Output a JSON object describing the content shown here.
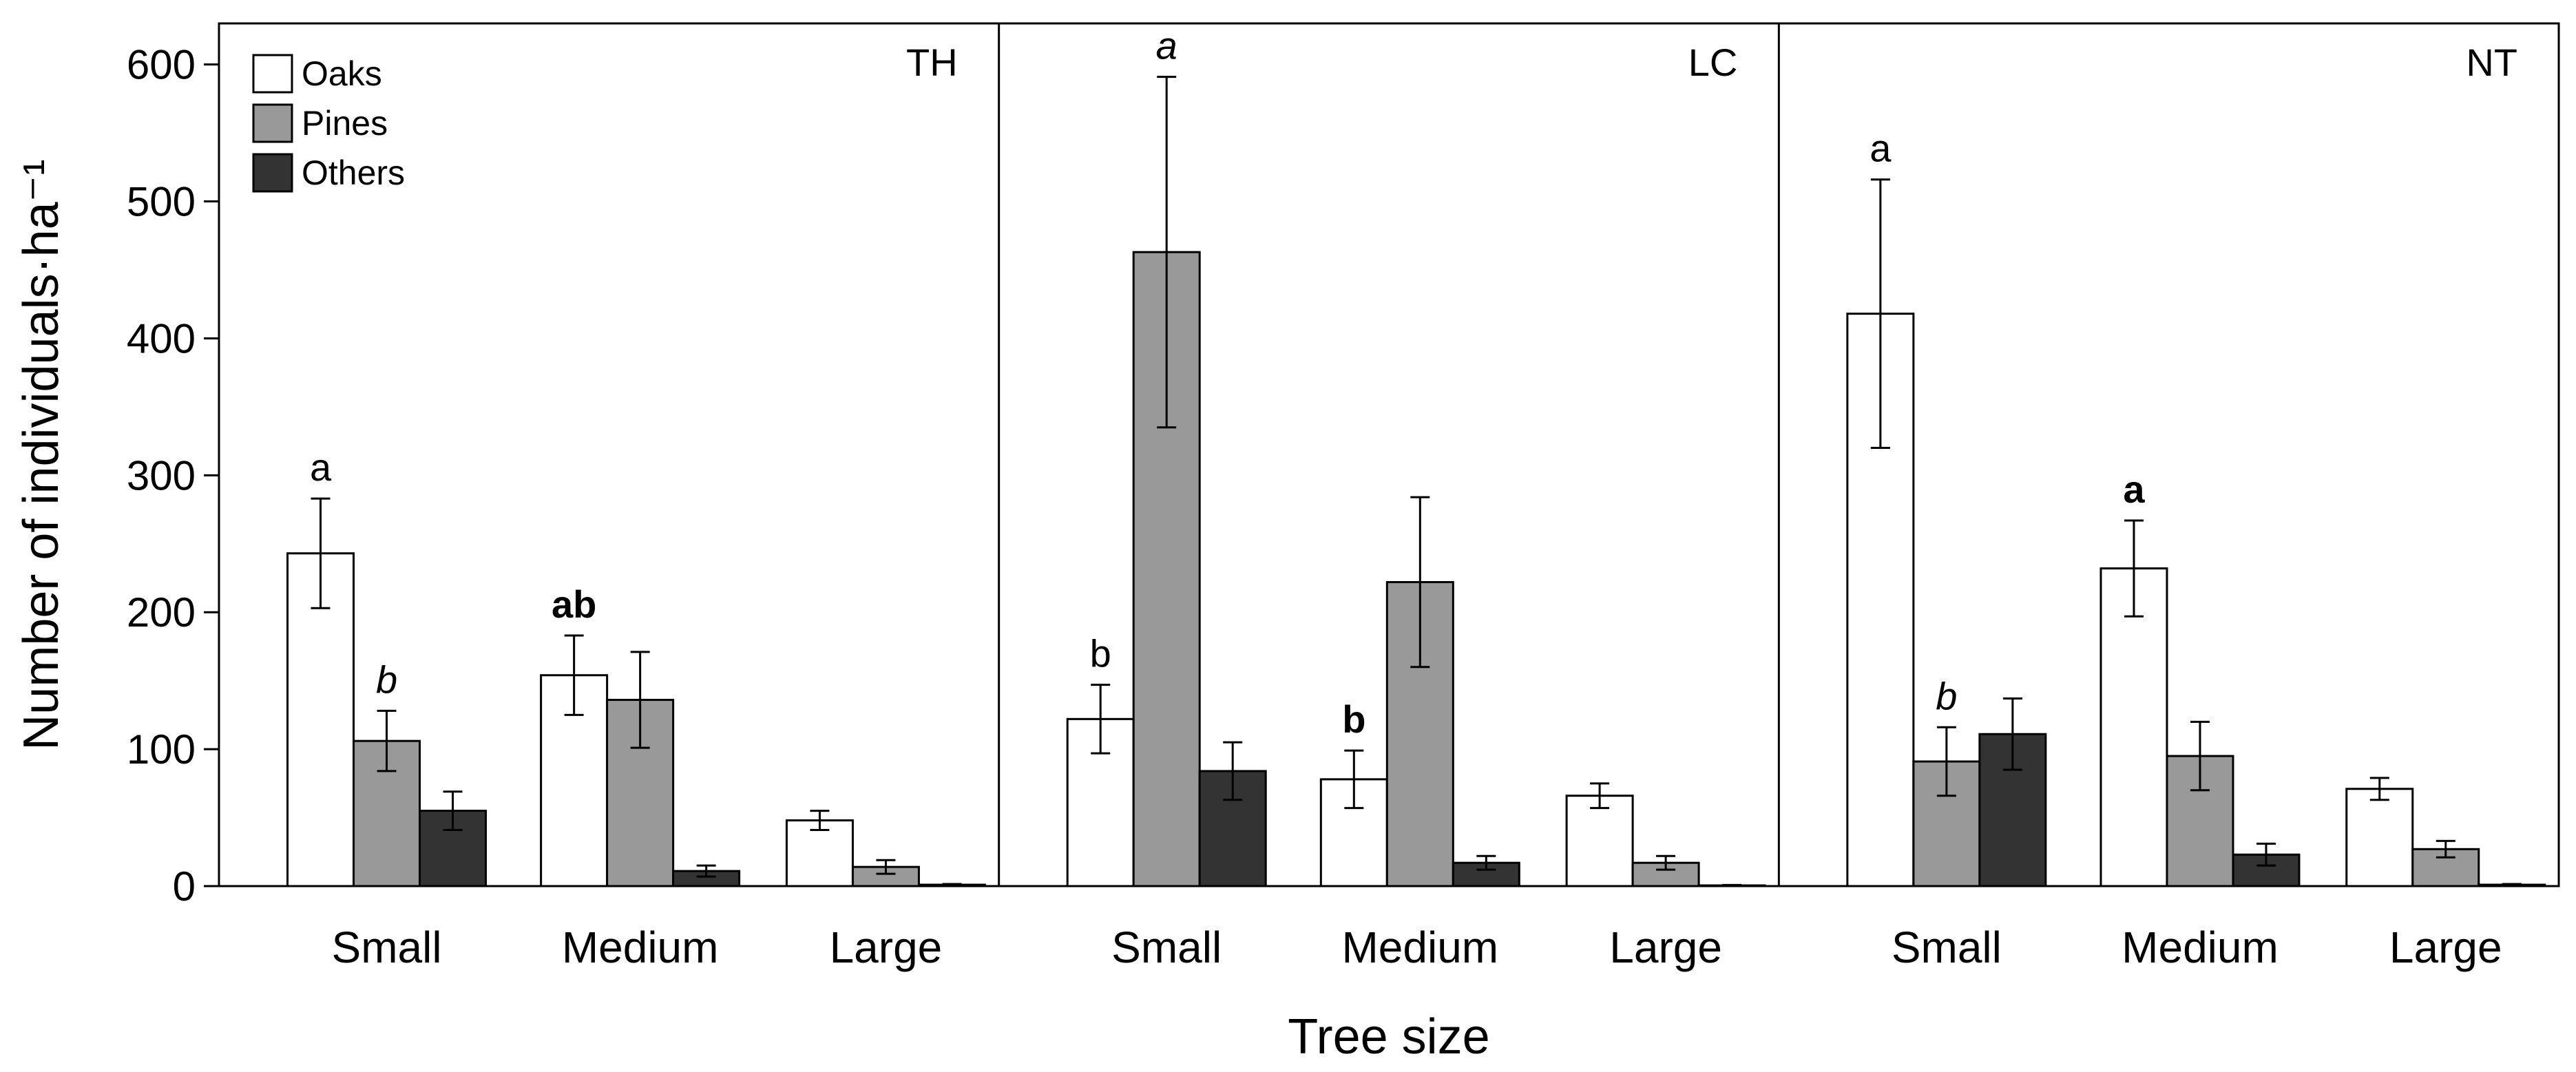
{
  "chart_data": {
    "type": "bar",
    "title": "",
    "xlabel": "Tree size",
    "ylabel": "Number of individuals·ha⁻¹",
    "ylim": [
      0,
      630
    ],
    "yticks": [
      0,
      100,
      200,
      300,
      400,
      500,
      600
    ],
    "categories": [
      "Small",
      "Medium",
      "Large"
    ],
    "legend": {
      "placement": "top-left",
      "entries": [
        {
          "name": "Oaks",
          "color": "#ffffff"
        },
        {
          "name": "Pines",
          "color": "#999999"
        },
        {
          "name": "Others",
          "color": "#333333"
        }
      ]
    },
    "panels": [
      {
        "label": "TH",
        "series": [
          {
            "name": "Oaks",
            "values": [
              243,
              154,
              48
            ],
            "errors": [
              40,
              29,
              7
            ]
          },
          {
            "name": "Pines",
            "values": [
              106,
              136,
              14
            ],
            "errors": [
              22,
              35,
              5
            ]
          },
          {
            "name": "Others",
            "values": [
              55,
              11,
              1
            ],
            "errors": [
              14,
              4,
              0.5
            ]
          }
        ],
        "annotations": [
          {
            "category": 0,
            "series": 0,
            "text": "a",
            "style": "normal"
          },
          {
            "category": 0,
            "series": 1,
            "text": "b",
            "style": "italic"
          },
          {
            "category": 1,
            "series": 0,
            "text": "ab",
            "style": "bold"
          }
        ]
      },
      {
        "label": "LC",
        "series": [
          {
            "name": "Oaks",
            "values": [
              122,
              78,
              66
            ],
            "errors": [
              25,
              21,
              9
            ]
          },
          {
            "name": "Pines",
            "values": [
              463,
              222,
              17
            ],
            "errors": [
              128,
              62,
              5
            ]
          },
          {
            "name": "Others",
            "values": [
              84,
              17,
              0.5
            ],
            "errors": [
              21,
              5,
              0.3
            ]
          }
        ],
        "annotations": [
          {
            "category": 0,
            "series": 0,
            "text": "b",
            "style": "normal"
          },
          {
            "category": 0,
            "series": 1,
            "text": "a",
            "style": "italic"
          },
          {
            "category": 1,
            "series": 0,
            "text": "b",
            "style": "bold"
          }
        ]
      },
      {
        "label": "NT",
        "series": [
          {
            "name": "Oaks",
            "values": [
              418,
              232,
              71
            ],
            "errors": [
              98,
              35,
              8
            ]
          },
          {
            "name": "Pines",
            "values": [
              91,
              95,
              27
            ],
            "errors": [
              25,
              25,
              6
            ]
          },
          {
            "name": "Others",
            "values": [
              111,
              23,
              1
            ],
            "errors": [
              26,
              8,
              0.5
            ]
          }
        ],
        "annotations": [
          {
            "category": 0,
            "series": 0,
            "text": "a",
            "style": "normal"
          },
          {
            "category": 0,
            "series": 1,
            "text": "b",
            "style": "italic"
          },
          {
            "category": 1,
            "series": 0,
            "text": "a",
            "style": "bold"
          }
        ]
      }
    ]
  }
}
